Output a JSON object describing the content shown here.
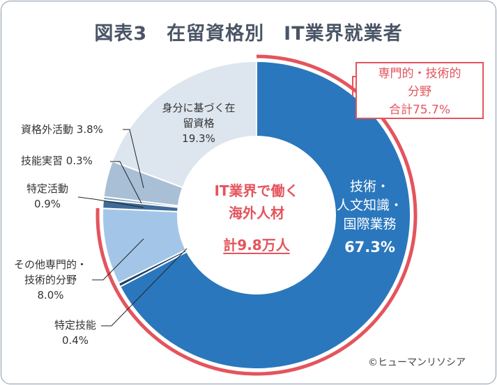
{
  "chart_data": {
    "type": "pie",
    "title": "図表3　在留資格別　IT業界就業者",
    "center_text": {
      "line1": "IT業界で働く",
      "line2": "海外人材",
      "total": "計9.8万人"
    },
    "unit": "%",
    "slices": [
      {
        "label": "技術・人文知識・国際業務",
        "label_lines": [
          "技術・",
          "人文知識・",
          "国際業務"
        ],
        "value": 67.3,
        "value_label": "67.3%",
        "color": "#2a77bd"
      },
      {
        "label": "特定技能",
        "label_lines": [
          "特定技能"
        ],
        "value": 0.4,
        "value_label": "0.4%",
        "color": "#1d3f66"
      },
      {
        "label": "その他専門的・技術的分野",
        "label_lines": [
          "その他専門的・",
          "技術的分野"
        ],
        "value": 8.0,
        "value_label": "8.0%",
        "color": "#a3c6e8"
      },
      {
        "label": "特定活動",
        "label_lines": [
          "特定活動"
        ],
        "value": 0.9,
        "value_label": "0.9%",
        "color": "#3f6b98"
      },
      {
        "label": "技能実習",
        "label_lines": [
          "技能実習"
        ],
        "value": 0.3,
        "value_label": "0.3%",
        "color": "#7f9cbc"
      },
      {
        "label": "資格外活動",
        "label_lines": [
          "資格外活動"
        ],
        "value": 3.8,
        "value_label": "3.8%",
        "color": "#a9bfd6"
      },
      {
        "label": "身分に基づく在留資格",
        "label_lines": [
          "身分に基づく在",
          "留資格"
        ],
        "value": 19.3,
        "value_label": "19.3%",
        "color": "#dde6ef"
      }
    ],
    "annotation": {
      "lines": [
        "専門的・技術的",
        "分野",
        "合計75.7%"
      ],
      "value": 75.7,
      "color": "#e4545d"
    },
    "credit": "©ヒューマンリソシア"
  }
}
